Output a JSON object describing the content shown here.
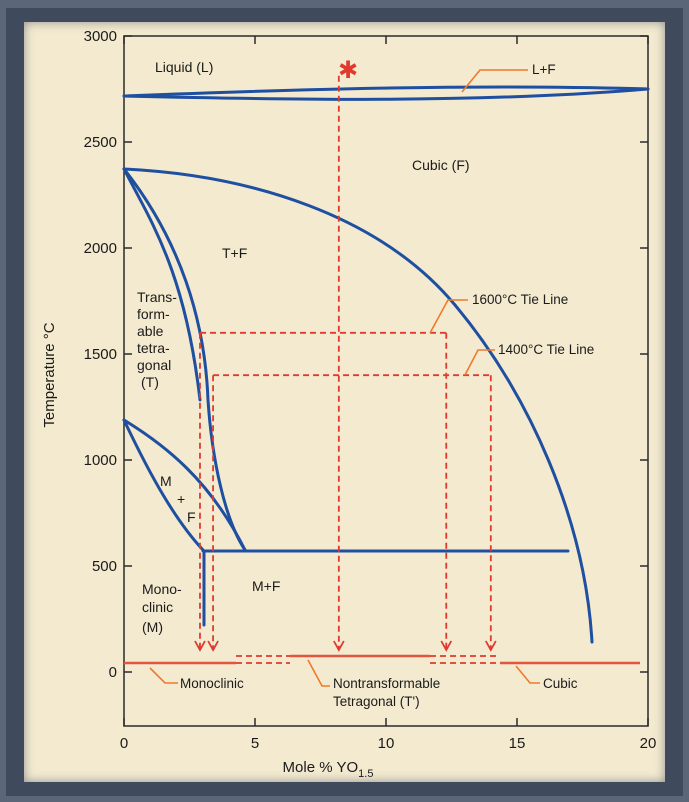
{
  "axes": {
    "x_label": "Mole % YO",
    "x_sub": "1.5",
    "y_label": "Temperature °C",
    "x_ticks": [
      "0",
      "5",
      "10",
      "15",
      "20"
    ],
    "y_ticks": [
      "3000",
      "2500",
      "2000",
      "1500",
      "1000",
      "500",
      "0"
    ]
  },
  "regions": {
    "liquid": "Liquid (L)",
    "cubic": "Cubic (F)",
    "tf": "T+F",
    "transformable": [
      "Trans-",
      "form-",
      "able",
      "tetra-",
      "gonal",
      "(T)"
    ],
    "mf_small": [
      "M",
      "+",
      "F"
    ],
    "monoclinic": [
      "Mono-",
      "clinic",
      "(M)"
    ],
    "mf": "M+F"
  },
  "callouts": {
    "lf": "L+F",
    "tie1600": "1600°C Tie Line",
    "tie1400": "1400°C Tie Line",
    "monoclinic": "Monoclinic",
    "nontransformable": [
      "Nontransformable",
      "Tetragonal (T')"
    ],
    "cubic": "Cubic"
  },
  "diagram_data": {
    "x_range": [
      0,
      20
    ],
    "y_range": [
      0,
      3000
    ],
    "liquidus_band": {
      "temp_center": 2720,
      "x_from": -0.2,
      "x_to": 20
    },
    "tie_lines": [
      {
        "temp": 1600,
        "x_from": 2.9,
        "x_to": 12.3
      },
      {
        "temp": 1400,
        "x_from": 3.4,
        "x_to": 14.0
      }
    ],
    "eutectoid_temp": 565,
    "quench_point": {
      "x": 8.2,
      "temp": 2850
    }
  }
}
